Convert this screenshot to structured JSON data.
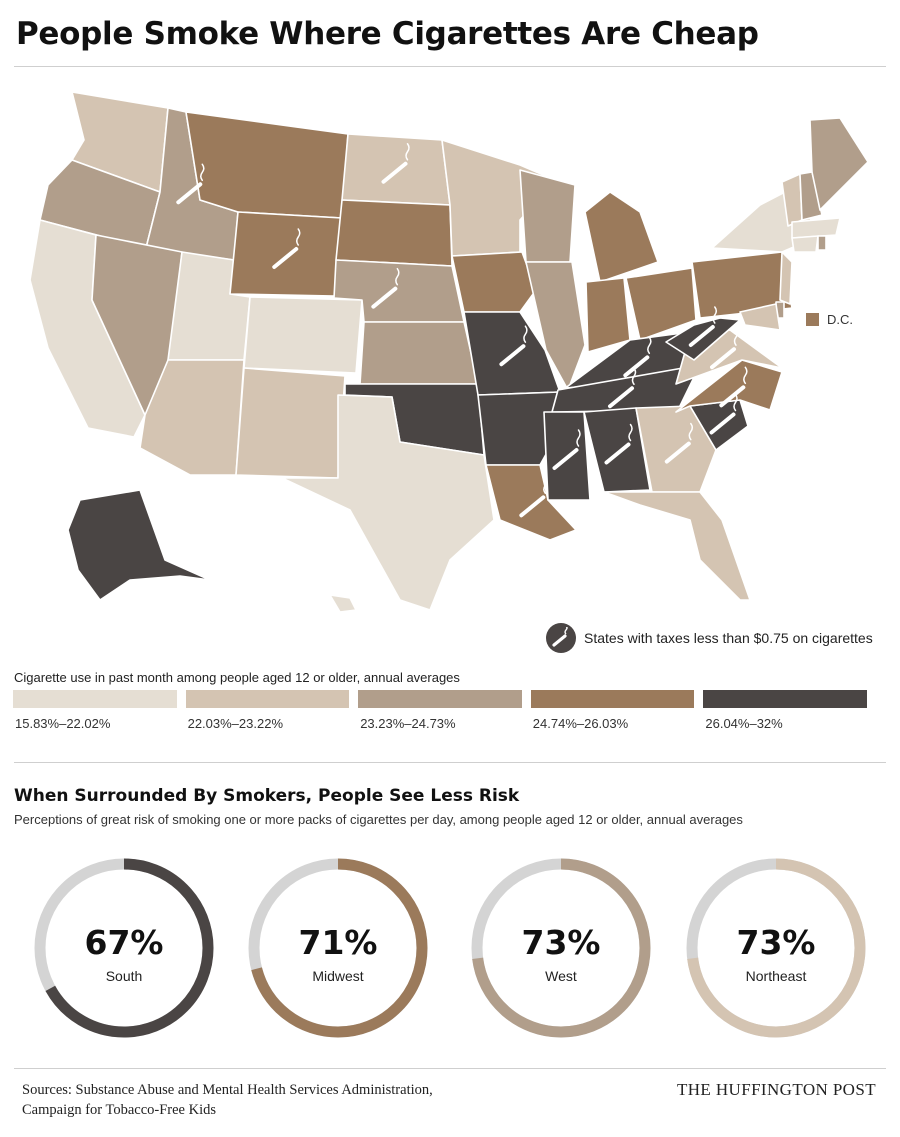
{
  "title": "People Smoke Where Cigarettes Are Cheap",
  "colors": {
    "c1": "#e5ded3",
    "c2": "#d4c4b2",
    "c3": "#b19e8b",
    "c4": "#9b7a5b",
    "c5": "#4a4544",
    "ring_bg": "#d4d4d4",
    "south": "#4a4544",
    "midwest": "#9b7a5b",
    "west": "#b19e8b",
    "northeast": "#d4c4b2"
  },
  "map": {
    "dc_label": "D.C.",
    "tax_legend": "States with taxes less than $0.75 on cigarettes",
    "states": [
      {
        "id": "WA",
        "cls": "c2",
        "tax": false
      },
      {
        "id": "OR",
        "cls": "c3",
        "tax": false
      },
      {
        "id": "CA",
        "cls": "c1",
        "tax": false
      },
      {
        "id": "ID",
        "cls": "c3",
        "tax": true
      },
      {
        "id": "NV",
        "cls": "c3",
        "tax": false
      },
      {
        "id": "UT",
        "cls": "c1",
        "tax": false
      },
      {
        "id": "AZ",
        "cls": "c2",
        "tax": false
      },
      {
        "id": "MT",
        "cls": "c4",
        "tax": false
      },
      {
        "id": "WY",
        "cls": "c4",
        "tax": true
      },
      {
        "id": "CO",
        "cls": "c1",
        "tax": false
      },
      {
        "id": "NM",
        "cls": "c2",
        "tax": false
      },
      {
        "id": "ND",
        "cls": "c2",
        "tax": true
      },
      {
        "id": "SD",
        "cls": "c4",
        "tax": false
      },
      {
        "id": "NE",
        "cls": "c3",
        "tax": true
      },
      {
        "id": "KS",
        "cls": "c3",
        "tax": false
      },
      {
        "id": "OK",
        "cls": "c5",
        "tax": false
      },
      {
        "id": "TX",
        "cls": "c1",
        "tax": false
      },
      {
        "id": "MN",
        "cls": "c2",
        "tax": false
      },
      {
        "id": "IA",
        "cls": "c4",
        "tax": false
      },
      {
        "id": "MO",
        "cls": "c5",
        "tax": true
      },
      {
        "id": "AR",
        "cls": "c5",
        "tax": false
      },
      {
        "id": "LA",
        "cls": "c4",
        "tax": true
      },
      {
        "id": "WI",
        "cls": "c3",
        "tax": false
      },
      {
        "id": "IL",
        "cls": "c3",
        "tax": false
      },
      {
        "id": "MI",
        "cls": "c4",
        "tax": false
      },
      {
        "id": "IN",
        "cls": "c4",
        "tax": false
      },
      {
        "id": "OH",
        "cls": "c4",
        "tax": false
      },
      {
        "id": "KY",
        "cls": "c5",
        "tax": true
      },
      {
        "id": "TN",
        "cls": "c5",
        "tax": true
      },
      {
        "id": "MS",
        "cls": "c5",
        "tax": true
      },
      {
        "id": "AL",
        "cls": "c5",
        "tax": true
      },
      {
        "id": "GA",
        "cls": "c2",
        "tax": true
      },
      {
        "id": "FL",
        "cls": "c2",
        "tax": false
      },
      {
        "id": "SC",
        "cls": "c5",
        "tax": true
      },
      {
        "id": "NC",
        "cls": "c4",
        "tax": true
      },
      {
        "id": "VA",
        "cls": "c2",
        "tax": true
      },
      {
        "id": "WV",
        "cls": "c5",
        "tax": true
      },
      {
        "id": "PA",
        "cls": "c4",
        "tax": false
      },
      {
        "id": "NY",
        "cls": "c1",
        "tax": false
      },
      {
        "id": "NJ",
        "cls": "c2",
        "tax": false
      },
      {
        "id": "DE",
        "cls": "c3",
        "tax": false
      },
      {
        "id": "MD",
        "cls": "c2",
        "tax": false
      },
      {
        "id": "VT",
        "cls": "c2",
        "tax": false
      },
      {
        "id": "NH",
        "cls": "c3",
        "tax": false
      },
      {
        "id": "ME",
        "cls": "c3",
        "tax": false
      },
      {
        "id": "MA",
        "cls": "c1",
        "tax": false
      },
      {
        "id": "CT",
        "cls": "c1",
        "tax": false
      },
      {
        "id": "RI",
        "cls": "c3",
        "tax": false
      },
      {
        "id": "AK",
        "cls": "c5",
        "tax": false
      },
      {
        "id": "HI",
        "cls": "c1",
        "tax": false
      },
      {
        "id": "DC",
        "cls": "c4",
        "tax": false
      }
    ]
  },
  "legend": {
    "title": "Cigarette use in past month among people aged 12 or older, annual averages",
    "items": [
      {
        "label": "15.83%–22.02%",
        "color": "#e5ded3"
      },
      {
        "label": "22.03%–23.22%",
        "color": "#d4c4b2"
      },
      {
        "label": "23.23%–24.73%",
        "color": "#b19e8b"
      },
      {
        "label": "24.74%–26.03%",
        "color": "#9b7a5b"
      },
      {
        "label": "26.04%–32%",
        "color": "#4a4544"
      }
    ]
  },
  "risk": {
    "title": "When Surrounded By Smokers, People See Less Risk",
    "subtitle": "Perceptions of great risk of smoking one or more packs of cigarettes per day, among people aged 12 or older, annual averages"
  },
  "chart_data": {
    "type": "donut",
    "title": "When Surrounded By Smokers, People See Less Risk",
    "series": [
      {
        "name": "South",
        "value": 67,
        "label": "67%",
        "color": "#4a4544"
      },
      {
        "name": "Midwest",
        "value": 71,
        "label": "71%",
        "color": "#9b7a5b"
      },
      {
        "name": "West",
        "value": 73,
        "label": "73%",
        "color": "#b19e8b"
      },
      {
        "name": "Northeast",
        "value": 73,
        "label": "73%",
        "color": "#d4c4b2"
      }
    ]
  },
  "footer": {
    "sources_line1": "Sources: Substance Abuse and Mental Health Services Administration,",
    "sources_line2": "Campaign for Tobacco-Free Kids",
    "brand": "THE HUFFINGTON POST"
  }
}
